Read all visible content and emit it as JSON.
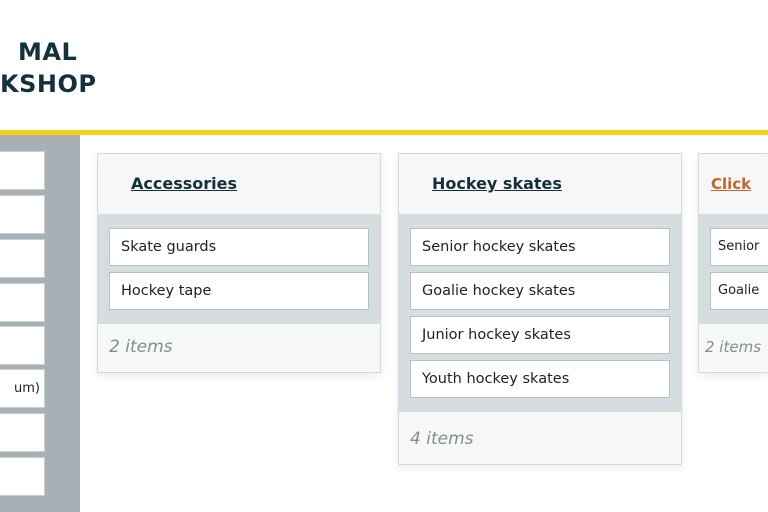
{
  "logo": {
    "line1": "MAL",
    "line2": "KSHOP"
  },
  "accent_color": "#f5d21a",
  "sidebar": {
    "items": [
      "",
      "",
      "",
      "",
      "",
      "um)",
      "",
      ""
    ]
  },
  "cards": [
    {
      "title": "Accessories",
      "items": [
        "Skate guards",
        "Hockey tape"
      ],
      "count": "2 items"
    },
    {
      "title": "Hockey skates",
      "items": [
        "Senior hockey skates",
        "Goalie hockey skates",
        "Junior hockey skates",
        "Youth hockey skates"
      ],
      "count": "4 items"
    },
    {
      "title": "Click",
      "items": [
        "Senior",
        "Goalie"
      ],
      "count": "2 items",
      "title_color": "#c8642a"
    }
  ]
}
